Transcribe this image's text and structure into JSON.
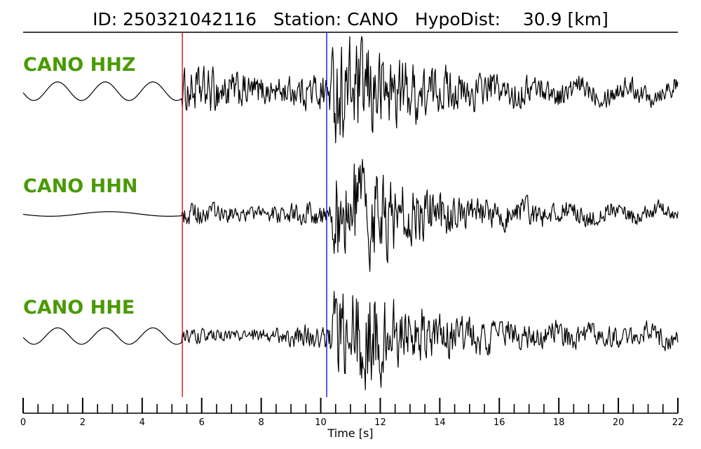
{
  "title": {
    "id_label": "ID:",
    "id_value": "250321042116",
    "station_label": "Station:",
    "station_value": "CANO",
    "hypodist_label": "HypoDist:",
    "hypodist_value": "30.9",
    "hypodist_unit": "[km]"
  },
  "chart_data": {
    "type": "line",
    "xlabel": "Time [s]",
    "xlim": [
      0,
      22
    ],
    "x_ticks": [
      0,
      2,
      4,
      6,
      8,
      10,
      12,
      14,
      16,
      18,
      20,
      22
    ],
    "x_tick_labels": [
      "0",
      "2",
      "4",
      "6",
      "8",
      "10",
      "12",
      "14",
      "16",
      "18",
      "20",
      "22"
    ],
    "minor_tick_step": 0.5,
    "p_pick_time": 5.35,
    "s_pick_time": 10.2,
    "p_pick_color": "#e00000",
    "s_pick_color": "#0000dd",
    "label_color": "#4a9a06",
    "series": [
      {
        "name": "CANO HHZ",
        "pre_event_amplitude": 0.17,
        "pre_event_period": 1.6,
        "p_coda_amplitude": 0.45,
        "s_peak_amplitude": 1.0,
        "late_coda_amplitude": 0.2
      },
      {
        "name": "CANO HHN",
        "pre_event_amplitude": 0.04,
        "pre_event_period": 4.0,
        "p_coda_amplitude": 0.22,
        "s_peak_amplitude": 1.0,
        "late_coda_amplitude": 0.15
      },
      {
        "name": "CANO HHE",
        "pre_event_amplitude": 0.15,
        "pre_event_period": 1.6,
        "p_coda_amplitude": 0.18,
        "s_peak_amplitude": 1.0,
        "late_coda_amplitude": 0.2
      }
    ]
  }
}
